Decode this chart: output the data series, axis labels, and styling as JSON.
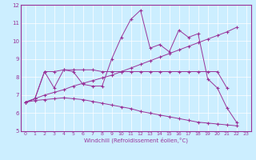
{
  "xlabel": "Windchill (Refroidissement éolien,°C)",
  "bg_color": "#cceeff",
  "line_color": "#993399",
  "xlim": [
    -0.5,
    23.5
  ],
  "ylim": [
    5,
    12
  ],
  "xticks": [
    0,
    1,
    2,
    3,
    4,
    5,
    6,
    7,
    8,
    9,
    10,
    11,
    12,
    13,
    14,
    15,
    16,
    17,
    18,
    19,
    20,
    21,
    22,
    23
  ],
  "yticks": [
    5,
    6,
    7,
    8,
    9,
    10,
    11,
    12
  ],
  "series1_x": [
    0,
    1,
    2,
    3,
    4,
    5,
    6,
    7,
    8,
    9,
    10,
    11,
    12,
    13,
    14,
    15,
    16,
    17,
    18,
    19,
    20,
    21,
    22
  ],
  "series1_y": [
    6.6,
    6.8,
    8.3,
    7.4,
    8.4,
    8.3,
    7.6,
    7.5,
    7.5,
    9.0,
    10.2,
    11.2,
    11.7,
    9.6,
    9.8,
    9.4,
    10.6,
    10.2,
    10.4,
    7.9,
    7.4,
    6.3,
    5.5
  ],
  "series2_x": [
    0,
    1,
    2,
    3,
    4,
    5,
    6,
    7,
    8,
    9,
    10,
    11,
    12,
    13,
    14,
    15,
    16,
    17,
    18,
    19,
    20,
    21
  ],
  "series2_y": [
    6.6,
    6.8,
    8.3,
    8.3,
    8.4,
    8.4,
    8.4,
    8.4,
    8.3,
    8.3,
    8.3,
    8.3,
    8.3,
    8.3,
    8.3,
    8.3,
    8.3,
    8.3,
    8.3,
    8.3,
    8.3,
    7.4
  ],
  "series3_x": [
    0,
    1,
    2,
    3,
    4,
    5,
    6,
    7,
    8,
    9,
    10,
    11,
    12,
    13,
    14,
    15,
    16,
    17,
    18,
    19,
    20,
    21,
    22
  ],
  "series3_y": [
    6.6,
    6.8,
    7.0,
    7.15,
    7.3,
    7.5,
    7.65,
    7.8,
    7.95,
    8.1,
    8.3,
    8.5,
    8.7,
    8.9,
    9.1,
    9.3,
    9.5,
    9.7,
    9.9,
    10.1,
    10.3,
    10.5,
    10.75
  ],
  "series4_x": [
    0,
    1,
    2,
    3,
    4,
    5,
    6,
    7,
    8,
    9,
    10,
    11,
    12,
    13,
    14,
    15,
    16,
    17,
    18,
    19,
    20,
    21,
    22
  ],
  "series4_y": [
    6.6,
    6.7,
    6.75,
    6.8,
    6.85,
    6.8,
    6.75,
    6.65,
    6.55,
    6.45,
    6.35,
    6.25,
    6.1,
    6.0,
    5.9,
    5.8,
    5.7,
    5.6,
    5.5,
    5.45,
    5.4,
    5.35,
    5.3
  ]
}
